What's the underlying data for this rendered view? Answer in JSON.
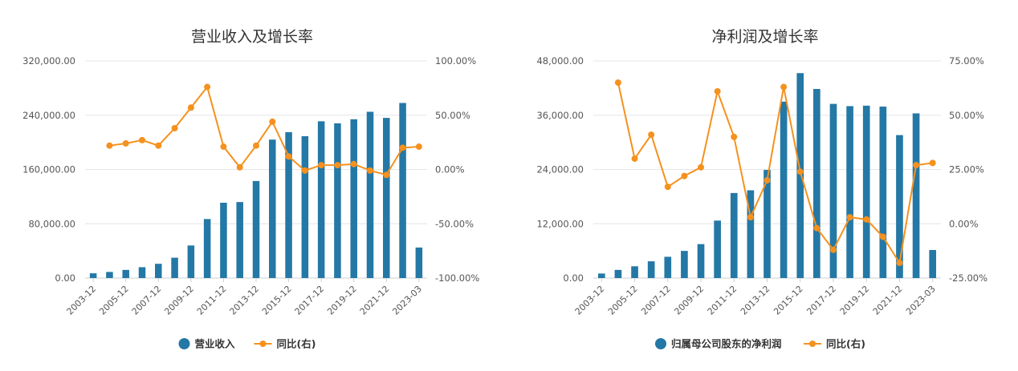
{
  "chart_data": [
    {
      "type": "bar",
      "title": "营业收入及增长率",
      "categories": [
        "2003-12",
        "2004-12",
        "2005-12",
        "2006-12",
        "2007-12",
        "2008-12",
        "2009-12",
        "2010-12",
        "2011-12",
        "2012-12",
        "2013-12",
        "2014-12",
        "2015-12",
        "2016-12",
        "2017-12",
        "2018-12",
        "2019-12",
        "2020-12",
        "2021-12",
        "2022-12",
        "2023-03"
      ],
      "x_tick_labels": [
        "2003-12",
        "2005-12",
        "2007-12",
        "2009-12",
        "2011-12",
        "2013-12",
        "2015-12",
        "2017-12",
        "2019-12",
        "2021-12",
        "2023-03"
      ],
      "series": [
        {
          "name": "营业收入",
          "type": "bar",
          "axis": "left",
          "color": "#2478a5",
          "values": [
            7000,
            9000,
            12000,
            16000,
            21000,
            30000,
            48000,
            87000,
            111000,
            112000,
            143000,
            204000,
            215000,
            209000,
            231000,
            228000,
            234000,
            245000,
            236000,
            258000,
            45000
          ]
        },
        {
          "name": "同比(右)",
          "type": "line",
          "axis": "right",
          "color": "#f5911e",
          "values": [
            null,
            22,
            24,
            27,
            22,
            38,
            57,
            76,
            21,
            2,
            22,
            44,
            12,
            -1,
            4,
            4,
            5,
            -1,
            -5,
            20,
            21
          ]
        }
      ],
      "y_left": {
        "min": 0,
        "max": 320000,
        "ticks": [
          "0.00",
          "80,000.00",
          "160,000.00",
          "240,000.00",
          "320,000.00"
        ]
      },
      "y_right": {
        "min": -100,
        "max": 100,
        "ticks": [
          "-100.00%",
          "-50.00%",
          "0.00%",
          "50.00%",
          "100.00%"
        ]
      },
      "legend": [
        "营业收入",
        "同比(右)"
      ]
    },
    {
      "type": "bar",
      "title": "净利润及增长率",
      "categories": [
        "2003-12",
        "2004-12",
        "2005-12",
        "2006-12",
        "2007-12",
        "2008-12",
        "2009-12",
        "2010-12",
        "2011-12",
        "2012-12",
        "2013-12",
        "2014-12",
        "2015-12",
        "2016-12",
        "2017-12",
        "2018-12",
        "2019-12",
        "2020-12",
        "2021-12",
        "2022-12",
        "2023-03"
      ],
      "x_tick_labels": [
        "2003-12",
        "2005-12",
        "2007-12",
        "2009-12",
        "2011-12",
        "2013-12",
        "2015-12",
        "2017-12",
        "2019-12",
        "2021-12",
        "2023-03"
      ],
      "series": [
        {
          "name": "归属母公司股东的净利润",
          "type": "bar",
          "axis": "left",
          "color": "#2478a5",
          "values": [
            1000,
            1800,
            2600,
            3700,
            4700,
            6000,
            7500,
            12700,
            18800,
            19400,
            23900,
            39000,
            45300,
            41800,
            38500,
            38000,
            38100,
            37900,
            31600,
            36400,
            6200
          ]
        },
        {
          "name": "同比(右)",
          "type": "line",
          "axis": "right",
          "color": "#f5911e",
          "values": [
            null,
            65,
            30,
            41,
            17,
            22,
            26,
            61,
            40,
            3,
            20,
            63,
            24,
            -2,
            -12,
            3,
            2,
            -6,
            -18,
            27,
            28
          ]
        }
      ],
      "y_left": {
        "min": 0,
        "max": 48000,
        "ticks": [
          "0.00",
          "12,000.00",
          "24,000.00",
          "36,000.00",
          "48,000.00"
        ]
      },
      "y_right": {
        "min": -25,
        "max": 75,
        "ticks": [
          "-25.00%",
          "0.00%",
          "25.00%",
          "50.00%",
          "75.00%"
        ]
      },
      "legend": [
        "归属母公司股东的净利润",
        "同比(右)"
      ]
    }
  ]
}
